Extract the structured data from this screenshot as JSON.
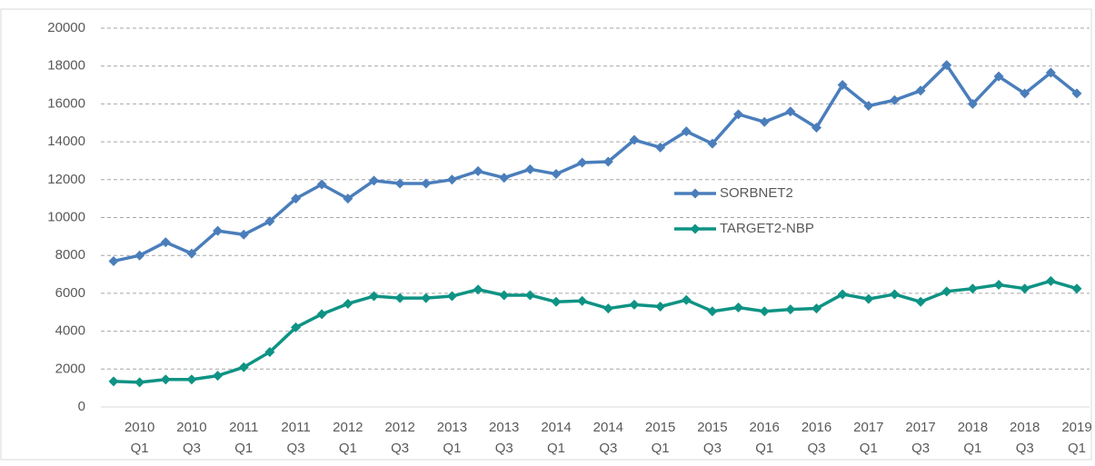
{
  "chart_data": {
    "type": "line",
    "categories": [
      null,
      [
        "2010",
        "Q1"
      ],
      null,
      [
        "2010",
        "Q3"
      ],
      null,
      [
        "2011",
        "Q1"
      ],
      null,
      [
        "2011",
        "Q3"
      ],
      null,
      [
        "2012",
        "Q1"
      ],
      null,
      [
        "2012",
        "Q3"
      ],
      null,
      [
        "2013",
        "Q1"
      ],
      null,
      [
        "2013",
        "Q3"
      ],
      null,
      [
        "2014",
        "Q1"
      ],
      null,
      [
        "2014",
        "Q3"
      ],
      null,
      [
        "2015",
        "Q1"
      ],
      null,
      [
        "2015",
        "Q3"
      ],
      null,
      [
        "2016",
        "Q1"
      ],
      null,
      [
        "2016",
        "Q3"
      ],
      null,
      [
        "2017",
        "Q1"
      ],
      null,
      [
        "2017",
        "Q3"
      ],
      null,
      [
        "2018",
        "Q1"
      ],
      null,
      [
        "2018",
        "Q3"
      ],
      null,
      [
        "2019",
        "Q1"
      ]
    ],
    "series": [
      {
        "name": "SORBNET2",
        "color": "#4a7ebb",
        "values": [
          7700,
          8000,
          8700,
          8100,
          9300,
          9100,
          9800,
          11000,
          11750,
          11000,
          11950,
          11800,
          11800,
          12000,
          12450,
          12100,
          12550,
          12300,
          12900,
          12950,
          14100,
          13700,
          14550,
          13900,
          15450,
          15050,
          15600,
          14750,
          17000,
          15900,
          16200,
          16700,
          18050,
          16000,
          17450,
          16550,
          17650,
          16550
        ]
      },
      {
        "name": "TARGET2-NBP",
        "color": "#0e9384",
        "values": [
          1350,
          1300,
          1450,
          1450,
          1650,
          2100,
          2900,
          4200,
          4900,
          5450,
          5850,
          5750,
          5750,
          5850,
          6200,
          5900,
          5900,
          5550,
          5600,
          5200,
          5400,
          5300,
          5650,
          5050,
          5250,
          5050,
          5150,
          5200,
          5950,
          5700,
          5950,
          5550,
          6100,
          6250,
          6450,
          6250,
          6650,
          6250
        ]
      }
    ],
    "ylim": [
      0,
      20000
    ],
    "yticks": [
      0,
      2000,
      4000,
      6000,
      8000,
      10000,
      12000,
      14000,
      16000,
      18000,
      20000
    ],
    "grid": true,
    "legend": "center"
  }
}
